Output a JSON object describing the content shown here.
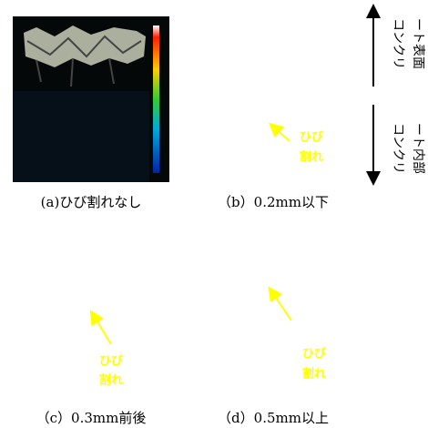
{
  "panels": [
    {
      "caption": "(a)ひび割れなし"
    },
    {
      "caption": "（b）0.2mm以下",
      "note": [
        "ひび",
        "割れ"
      ]
    },
    {
      "caption": "（c）0.3mm前後",
      "note": [
        "ひび",
        "割れ"
      ]
    },
    {
      "caption": "（d）0.5mm以上",
      "note": [
        "ひび",
        "割れ"
      ]
    }
  ],
  "side_labels": {
    "surface": [
      "コンクリ",
      "ート表面"
    ],
    "interior": [
      "コンクリ",
      "ート内部"
    ]
  }
}
